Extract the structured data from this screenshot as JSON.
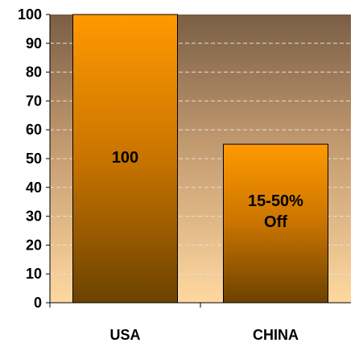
{
  "chart_data": {
    "type": "bar",
    "categories": [
      "USA",
      "CHINA"
    ],
    "values": [
      100,
      55
    ],
    "data_labels": [
      [
        "100"
      ],
      [
        "15-50%",
        "Off"
      ]
    ],
    "ylim": [
      0,
      100
    ],
    "yticks": [
      "0",
      "10",
      "20",
      "30",
      "40",
      "50",
      "60",
      "70",
      "80",
      "90",
      "100"
    ],
    "grid": true,
    "legend": "none",
    "colors": {
      "bar_top": "#ff9900",
      "bar_bottom": "#6b4200",
      "plot_top": "#7a5e45",
      "plot_bottom": "#ffd8a0",
      "grid": "#e8e0d0"
    }
  }
}
